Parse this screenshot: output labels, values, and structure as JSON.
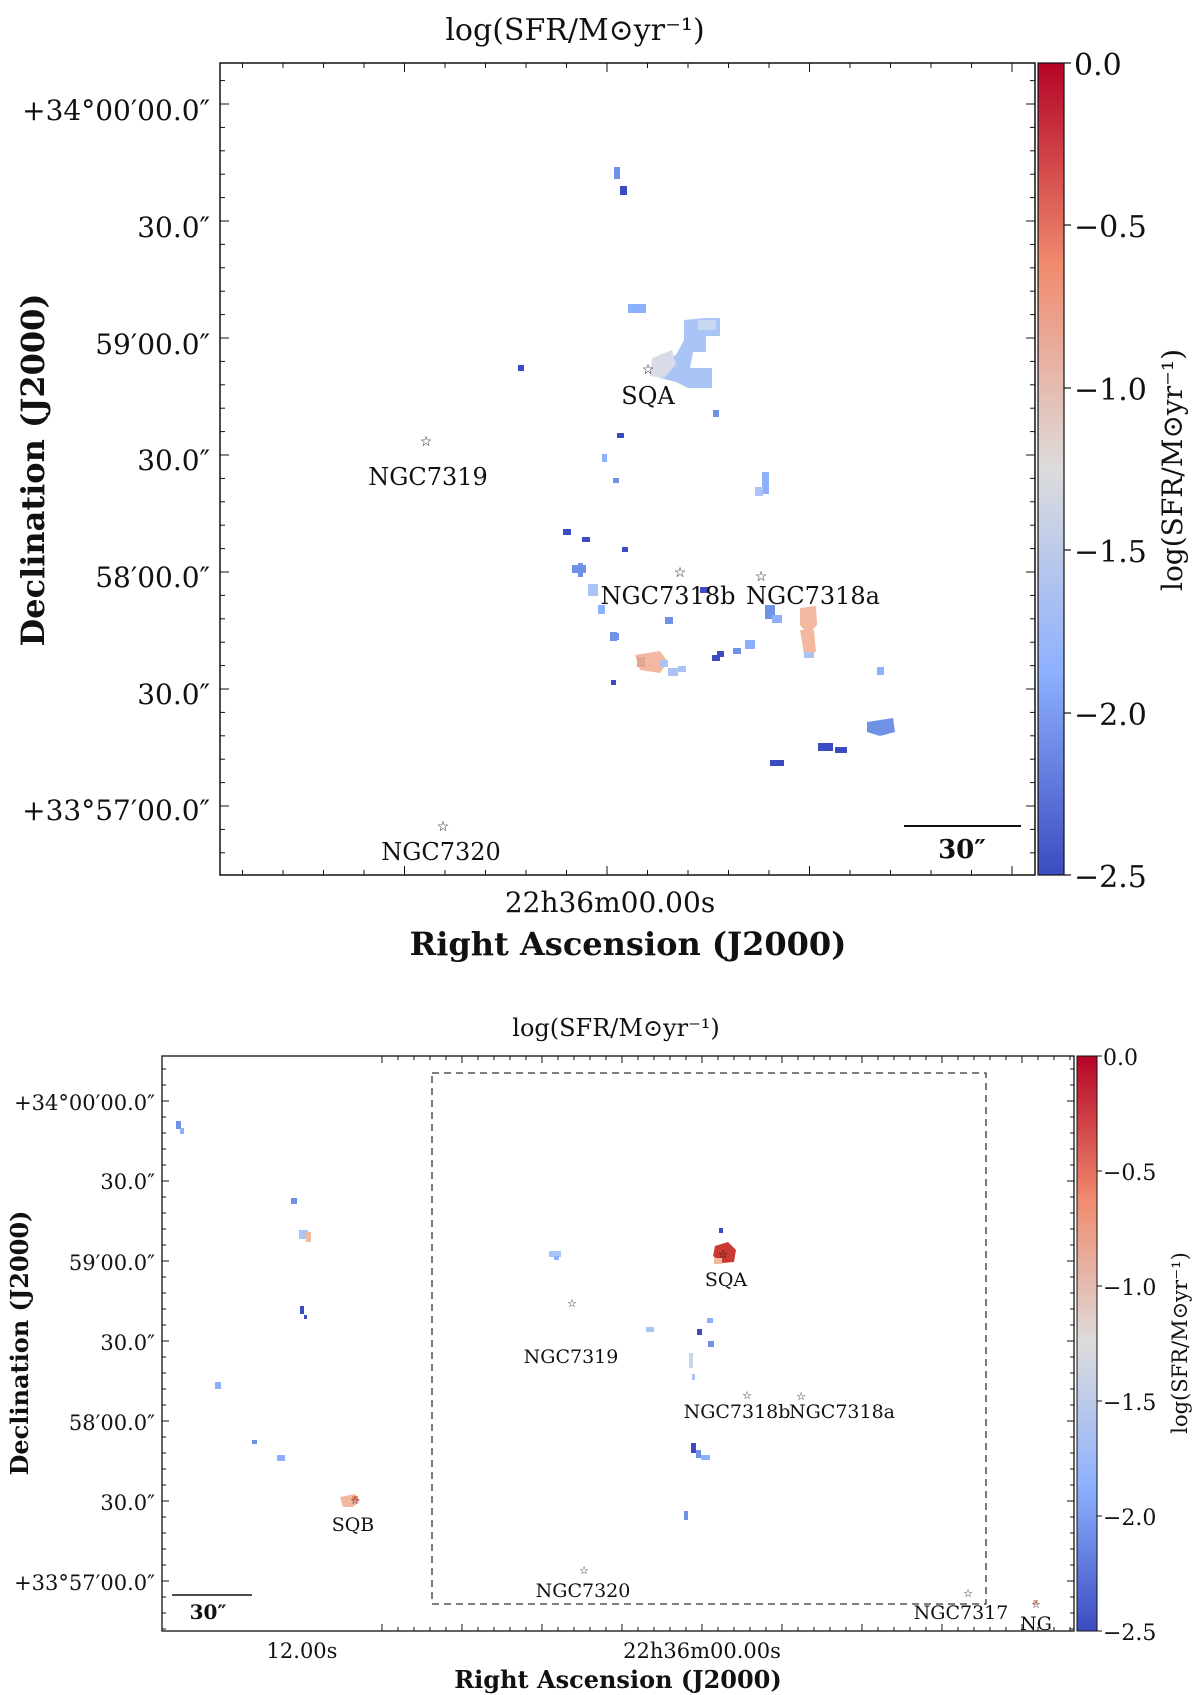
{
  "chart_data": [
    {
      "type": "heatmap",
      "title": "log(SFR/M⊙yr⁻¹)",
      "xlabel": "Right Ascension (J2000)",
      "ylabel": "Declination (J2000)",
      "colorbar_label": "log(SFR/M⊙yr⁻¹)",
      "colorbar_range": [
        -2.5,
        0.0
      ],
      "colorbar_ticks": [
        "0.0",
        "−0.5",
        "−1.0",
        "−1.5",
        "−2.0",
        "−2.5"
      ],
      "x_tick_labels": [
        "22h36m00.00s"
      ],
      "y_tick_labels": [
        "+34°00′00.0″",
        "30.0″",
        "59′00.0″",
        "30.0″",
        "58′00.0″",
        "30.0″",
        "+33°57′00.0″"
      ],
      "scale_bar_label": "30″",
      "galaxies": [
        "SQA",
        "NGC7319",
        "NGC7318b",
        "NGC7318a",
        "NGC7320"
      ],
      "colormap": "coolwarm"
    },
    {
      "type": "heatmap",
      "title": "log(SFR/M⊙yr⁻¹)",
      "xlabel": "Right Ascension (J2000)",
      "ylabel": "Declination (J2000)",
      "colorbar_label": "log(SFR/M⊙yr⁻¹)",
      "colorbar_range": [
        -2.5,
        0.0
      ],
      "colorbar_ticks": [
        "0.0",
        "−0.5",
        "−1.0",
        "−1.5",
        "−2.0",
        "−2.5"
      ],
      "x_tick_labels": [
        "12.00s",
        "22h36m00.00s"
      ],
      "y_tick_labels": [
        "+34°00′00.0″",
        "30.0″",
        "59′00.0″",
        "30.0″",
        "58′00.0″",
        "30.0″",
        "+33°57′00.0″"
      ],
      "scale_bar_label": "30″",
      "galaxies": [
        "SQA",
        "NGC7319",
        "NGC7318b",
        "NGC7318a",
        "SQB",
        "NGC7320",
        "NGC7317",
        "NG"
      ],
      "colormap": "coolwarm"
    }
  ],
  "colors": {
    "cmap_top": "#b40426",
    "cmap_upper": "#f08b6e",
    "cmap_mid": "#dddcdc",
    "cmap_lower": "#8db0fe",
    "cmap_bottom": "#3b4cc0",
    "blob_red": "#c83a32",
    "blob_salmon": "#f2b8a0",
    "blob_light_blue": "#a9c4f5",
    "blob_blue": "#6f91e6",
    "blob_dark_blue": "#3b4cc0"
  },
  "p1": {
    "title": "log(SFR/M⊙yr⁻¹)",
    "xlabel": "Right Ascension (J2000)",
    "ylabel": "Declination (J2000)",
    "cbar_label": "log(SFR/M⊙yr⁻¹)",
    "cbar": [
      "0.0",
      "−0.5",
      "−1.0",
      "−1.5",
      "−2.0",
      "−2.5"
    ],
    "yticks": [
      "+34°00′00.0″",
      "30.0″",
      "59′00.0″",
      "30.0″",
      "58′00.0″",
      "30.0″",
      "+33°57′00.0″"
    ],
    "xtick": "22h36m00.00s",
    "scalebar": "30″",
    "gal": [
      "SQA",
      "NGC7319",
      "NGC7318b",
      "NGC7318a",
      "NGC7320"
    ]
  },
  "p2": {
    "title": "log(SFR/M⊙yr⁻¹)",
    "xlabel": "Right Ascension (J2000)",
    "ylabel": "Declination (J2000)",
    "cbar_label": "log(SFR/M⊙yr⁻¹)",
    "cbar": [
      "0.0",
      "−0.5",
      "−1.0",
      "−1.5",
      "−2.0",
      "−2.5"
    ],
    "yticks": [
      "+34°00′00.0″",
      "30.0″",
      "59′00.0″",
      "30.0″",
      "58′00.0″",
      "30.0″",
      "+33°57′00.0″"
    ],
    "xtick1": "12.00s",
    "xtick2": "22h36m00.00s",
    "scalebar": "30″",
    "gal": [
      "SQA",
      "NGC7319",
      "NGC7318b",
      "NGC7318a",
      "SQB",
      "NGC7320",
      "NGC7317",
      "NG"
    ]
  }
}
